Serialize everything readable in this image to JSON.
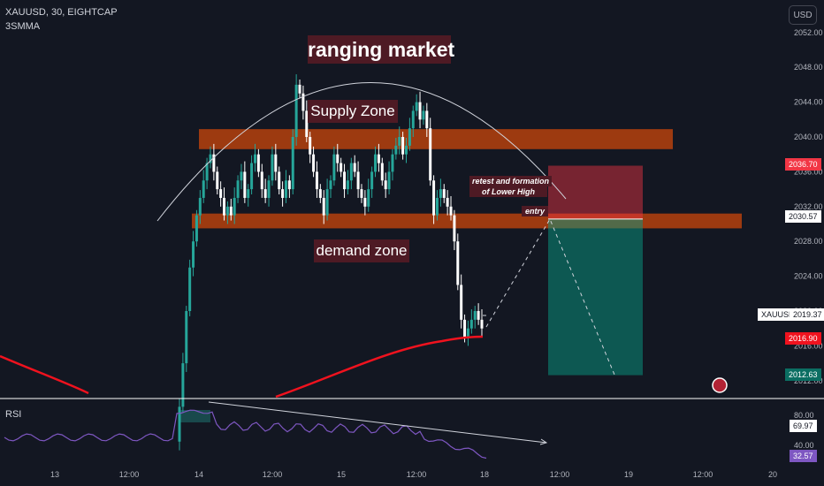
{
  "header": {
    "symbol": "XAUUSD, 30, EIGHTCAP",
    "indicator": "3SMMA"
  },
  "currency_button": "USD",
  "labels": {
    "ranging": "ranging market",
    "supply": "Supply Zone",
    "demand": "demand zone",
    "retest_1": "retest and formation",
    "retest_2": "of Lower High",
    "entry": "entry"
  },
  "price_tags": {
    "stop": "2036.70",
    "entry": "2030.57",
    "current_name": "XAUUSD",
    "current": "2019.37",
    "ma": "2016.90",
    "target": "2012.63"
  },
  "rsi": {
    "label": "RSI",
    "value": "69.97",
    "ma_value": "32.57",
    "ticks": [
      "80.00",
      "40.00"
    ]
  },
  "colors": {
    "up": "#26a69a",
    "down": "#ffffff",
    "ma": "#f0121e",
    "zone": "#c0440c",
    "rsi": "#7e57c2",
    "stop": "#f23645",
    "target": "#089981"
  },
  "chart_data": {
    "type": "candlestick",
    "symbol": "XAUUSD",
    "timeframe": "30",
    "y_ticks": [
      2052,
      2048,
      2044,
      2040,
      2036,
      2032,
      2028,
      2024,
      2020,
      2016,
      2012
    ],
    "y_tick_labels": [
      "2052.00",
      "2048.00",
      "2044.00",
      "2040.00",
      "2036.00",
      "2032.00",
      "2028.00",
      "2024.00",
      "2020.00",
      "2016.00",
      "2012.00"
    ],
    "x_tick_labels": [
      "13",
      "12:00",
      "14",
      "12:00",
      "15",
      "12:00",
      "18",
      "12:00",
      "19",
      "12:00",
      "20"
    ],
    "supply_zone": [
      2038.6,
      2040.9
    ],
    "demand_zone": [
      2029.5,
      2031.2
    ],
    "position": {
      "entry": 2030.57,
      "stop": 2036.7,
      "target": 2012.63
    },
    "price_path": [
      2005,
      2009,
      2014,
      2020,
      2025,
      2028,
      2031,
      2033,
      2035,
      2037,
      2038,
      2036,
      2034,
      2033,
      2031,
      2032,
      2031,
      2033,
      2035,
      2036,
      2033,
      2034,
      2037,
      2038,
      2036,
      2034,
      2033,
      2035,
      2038,
      2036,
      2034,
      2033,
      2035,
      2034,
      2040,
      2046,
      2045,
      2043,
      2040,
      2038,
      2036,
      2034,
      2033,
      2031,
      2034,
      2035,
      2038,
      2037,
      2036,
      2034,
      2035,
      2037,
      2036,
      2034,
      2033,
      2032,
      2034,
      2036,
      2038,
      2037,
      2035,
      2034,
      2036,
      2038,
      2039,
      2040,
      2038,
      2039,
      2041,
      2043,
      2044,
      2042,
      2043,
      2041,
      2035,
      2031,
      2033,
      2034,
      2033,
      2032,
      2031,
      2028,
      2023,
      2019,
      2017,
      2018,
      2019,
      2020,
      2019,
      2018
    ]
  }
}
